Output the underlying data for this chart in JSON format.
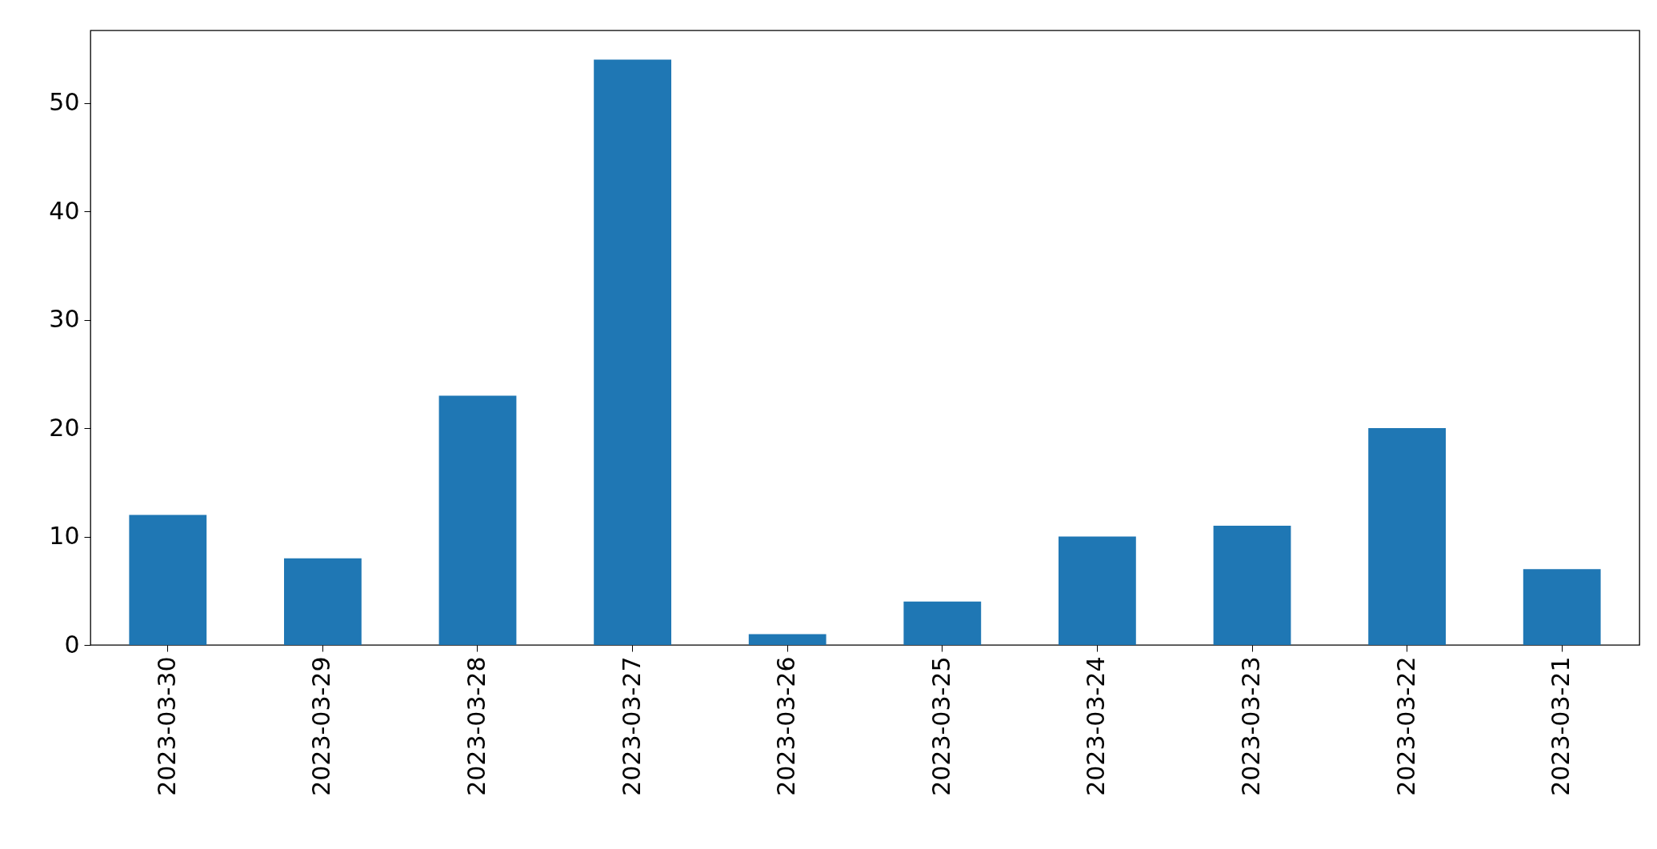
{
  "chart_data": {
    "type": "bar",
    "categories": [
      "2023-03-30",
      "2023-03-29",
      "2023-03-28",
      "2023-03-27",
      "2023-03-26",
      "2023-03-25",
      "2023-03-24",
      "2023-03-23",
      "2023-03-22",
      "2023-03-21"
    ],
    "values": [
      12,
      8,
      23,
      54,
      1,
      4,
      10,
      11,
      20,
      7
    ],
    "color": "#1f77b4",
    "ylim": [
      0,
      56.7
    ],
    "yticks": [
      0,
      10,
      20,
      30,
      40,
      50
    ],
    "grid": false
  }
}
